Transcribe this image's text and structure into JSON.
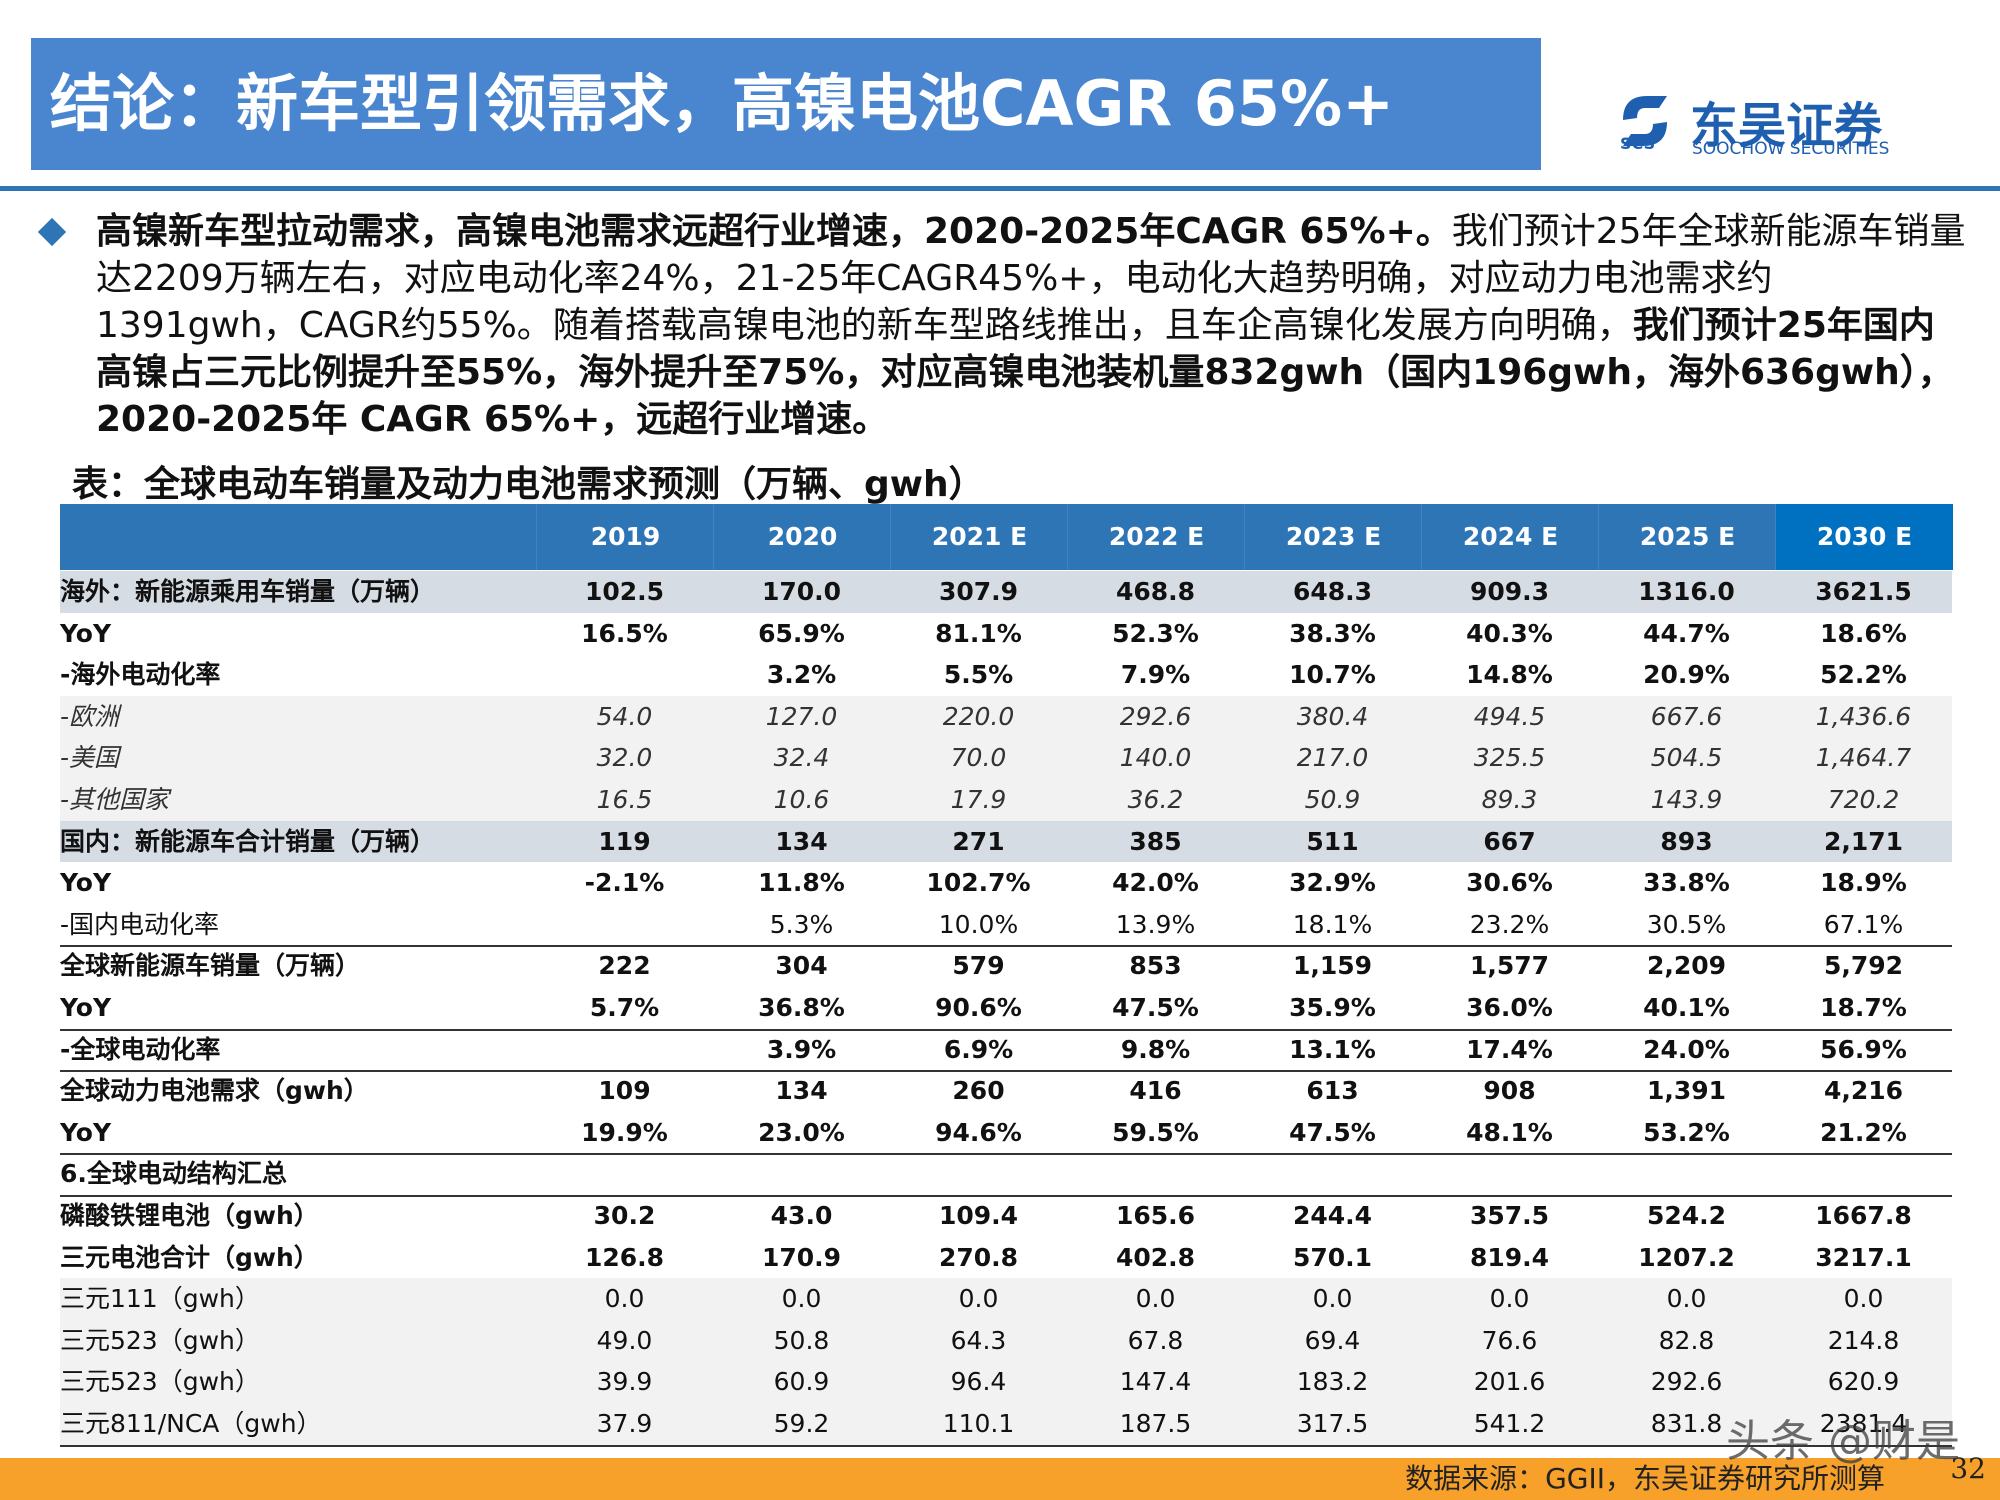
{
  "header": {
    "title": "结论：新车型引领需求，高镍电池CAGR 65%+",
    "logo_mark": "SCS",
    "logo_name": "东吴证券",
    "logo_en": "SOOCHOW SECURITIES"
  },
  "bullet": {
    "segments": [
      {
        "text": "高镍新车型拉动需求，高镍电池需求远超行业增速，2020-2025年CAGR 65%+。",
        "bold": true
      },
      {
        "text": "我们预计25年全球新能源车销量达2209万辆左右，对应电动化率24%，21-25年CAGR45%+，电动化大趋势明确，对应动力电池需求约1391gwh，CAGR约55%。随着搭载高镍电池的新车型路线推出，且车企高镍化发展方向明确，",
        "bold": false
      },
      {
        "text": "我们预计25年国内高镍占三元比例提升至55%，海外提升至75%，对应高镍电池装机量832gwh（国内196gwh，海外636gwh）， 2020-2025年 CAGR 65%+，远超行业增速。",
        "bold": true
      }
    ]
  },
  "table": {
    "title": "表：全球电动车销量及动力电池需求预测（万辆、gwh）",
    "columns": [
      "2019",
      "2020",
      "2021 E",
      "2022 E",
      "2023  E",
      "2024  E",
      "2025  E",
      "2030  E"
    ],
    "rows": [
      [
        "海外：新能源乘用车销量（万辆）",
        "102.5",
        "170.0",
        "307.9",
        "468.8",
        "648.3",
        "909.3",
        "1316.0",
        "3621.5"
      ],
      [
        "YoY",
        "16.5%",
        "65.9%",
        "81.1%",
        "52.3%",
        "38.3%",
        "40.3%",
        "44.7%",
        "18.6%"
      ],
      [
        "-海外电动化率",
        null,
        "3.2%",
        "5.5%",
        "7.9%",
        "10.7%",
        "14.8%",
        "20.9%",
        "52.2%"
      ],
      [
        "-欧洲",
        "54.0",
        "127.0",
        "220.0",
        "292.6",
        "380.4",
        "494.5",
        "667.6",
        "1,436.6"
      ],
      [
        "-美国",
        "32.0",
        "32.4",
        "70.0",
        "140.0",
        "217.0",
        "325.5",
        "504.5",
        "1,464.7"
      ],
      [
        "-其他国家",
        "16.5",
        "10.6",
        "17.9",
        "36.2",
        "50.9",
        "89.3",
        "143.9",
        "720.2"
      ],
      [
        "国内：新能源车合计销量（万辆）",
        "119",
        "134",
        "271",
        "385",
        "511",
        "667",
        "893",
        "2,171"
      ],
      [
        "YoY",
        "-2.1%",
        "11.8%",
        "102.7%",
        "42.0%",
        "32.9%",
        "30.6%",
        "33.8%",
        "18.9%"
      ],
      [
        "-国内电动化率",
        null,
        "5.3%",
        "10.0%",
        "13.9%",
        "18.1%",
        "23.2%",
        "30.5%",
        "67.1%"
      ],
      [
        "全球新能源车销量（万辆）",
        "222",
        "304",
        "579",
        "853",
        "1,159",
        "1,577",
        "2,209",
        "5,792"
      ],
      [
        "YoY",
        "5.7%",
        "36.8%",
        "90.6%",
        "47.5%",
        "35.9%",
        "36.0%",
        "40.1%",
        "18.7%"
      ],
      [
        "-全球电动化率",
        null,
        "3.9%",
        "6.9%",
        "9.8%",
        "13.1%",
        "17.4%",
        "24.0%",
        "56.9%"
      ],
      [
        "全球动力电池需求（gwh）",
        "109",
        "134",
        "260",
        "416",
        "613",
        "908",
        "1,391",
        "4,216"
      ],
      [
        "YoY",
        "19.9%",
        "23.0%",
        "94.6%",
        "59.5%",
        "47.5%",
        "48.1%",
        "53.2%",
        "21.2%"
      ],
      [
        "6.全球电动结构汇总",
        null,
        null,
        null,
        null,
        null,
        null,
        null,
        null
      ],
      [
        "磷酸铁锂电池（gwh）",
        "30.2",
        "43.0",
        "109.4",
        "165.6",
        "244.4",
        "357.5",
        "524.2",
        "1667.8"
      ],
      [
        "三元电池合计（gwh）",
        "126.8",
        "170.9",
        "270.8",
        "402.8",
        "570.1",
        "819.4",
        "1207.2",
        "3217.1"
      ],
      [
        "三元111（gwh）",
        "0.0",
        "0.0",
        "0.0",
        "0.0",
        "0.0",
        "0.0",
        "0.0",
        "0.0"
      ],
      [
        "三元523（gwh）",
        "49.0",
        "50.8",
        "64.3",
        "67.8",
        "69.4",
        "76.6",
        "82.8",
        "214.8"
      ],
      [
        "三元523（gwh）",
        "39.9",
        "60.9",
        "96.4",
        "147.4",
        "183.2",
        "201.6",
        "292.6",
        "620.9"
      ],
      [
        "三元811/NCA（gwh）",
        "37.9",
        "59.2",
        "110.1",
        "187.5",
        "317.5",
        "541.2",
        "831.8",
        "2381.4"
      ]
    ]
  },
  "footer": {
    "source": "数据来源：GGII，东吴证券研究所测算",
    "page": "32",
    "watermark": "头条 @财是"
  }
}
